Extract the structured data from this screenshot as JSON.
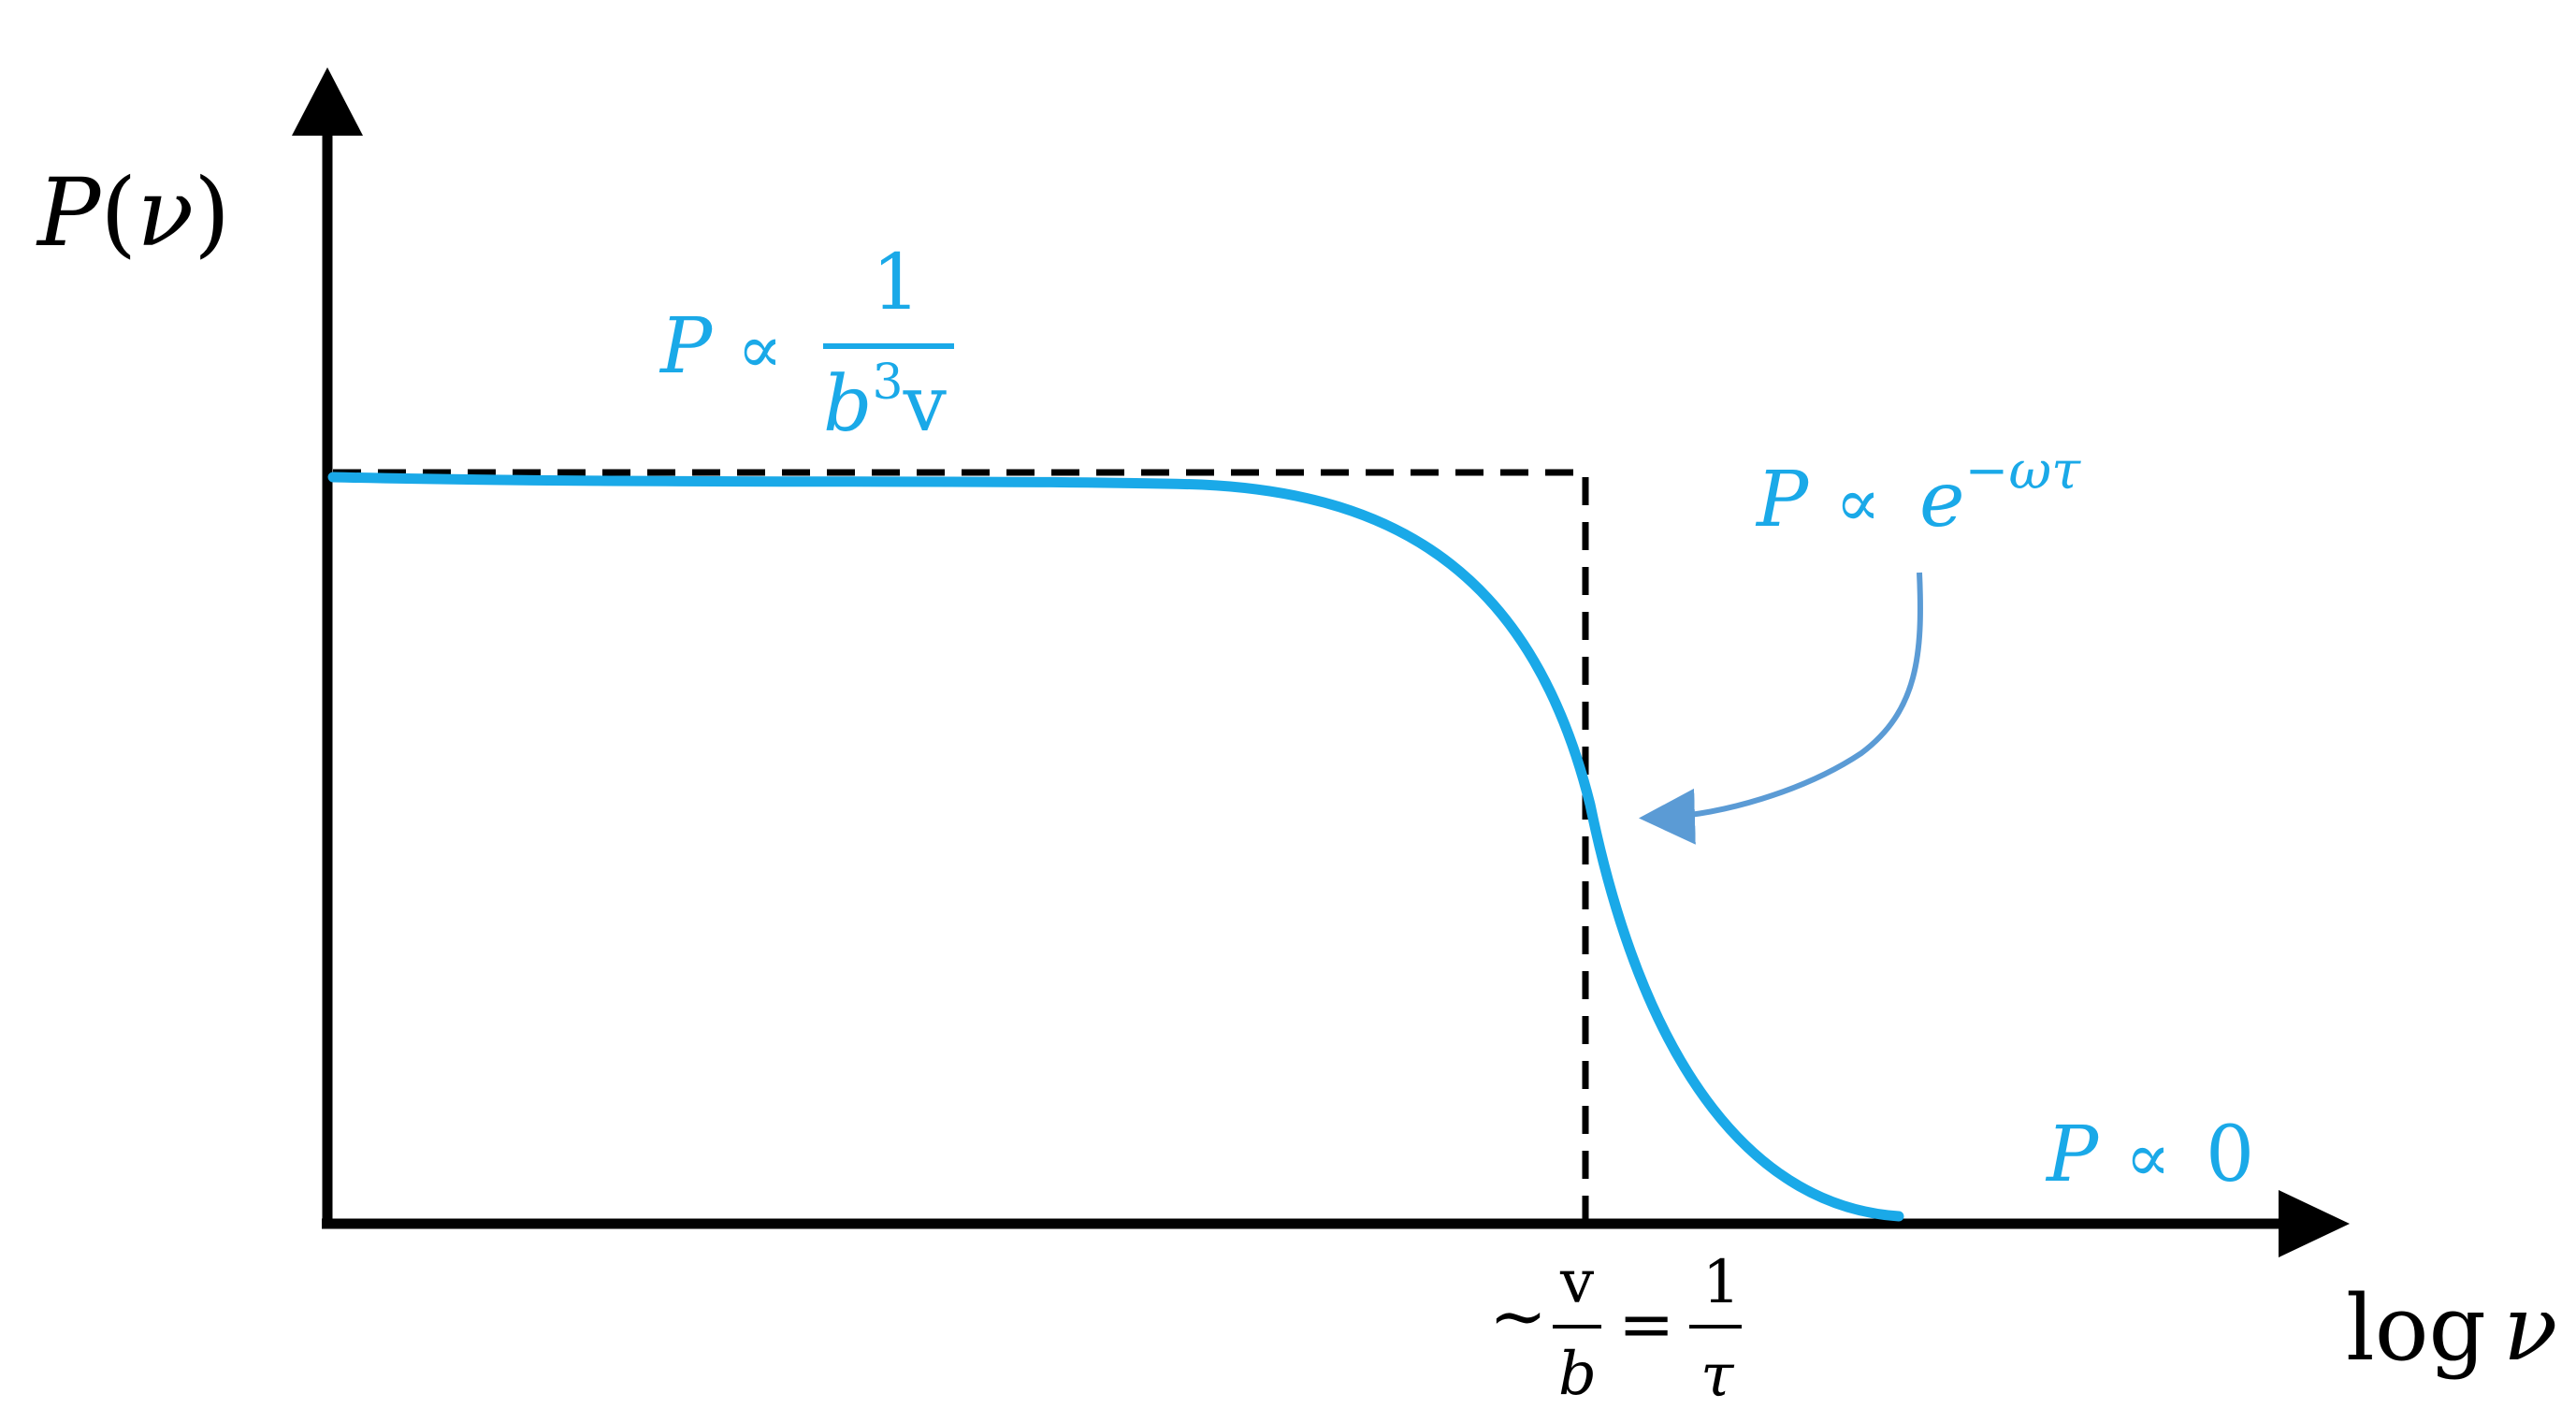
{
  "colors": {
    "axis": "#000000",
    "curve": "#1aa9e8",
    "arrow": "#5b9bd5",
    "dashed": "#000000",
    "annotation": "#1aa9e8"
  },
  "axes": {
    "y_label_symbol": "P",
    "y_label_open": "(",
    "y_label_var": "ν",
    "y_label_close": ")",
    "x_label_log": "log",
    "x_label_var": "ν"
  },
  "labels": {
    "plateau": {
      "lhs": "P",
      "prop": "∝",
      "num": "1",
      "den_b": "b",
      "den_exp": "3",
      "den_v": "v"
    },
    "decay": {
      "lhs": "P",
      "prop": "∝",
      "base": "e",
      "exponent": "−ωτ"
    },
    "tail": {
      "lhs": "P",
      "prop": "∝",
      "value": "0"
    },
    "cutoff": {
      "tilde": "~",
      "frac1_num": "v",
      "frac1_den": "b",
      "equals": "=",
      "frac2_num": "1",
      "frac2_den": "τ"
    }
  }
}
